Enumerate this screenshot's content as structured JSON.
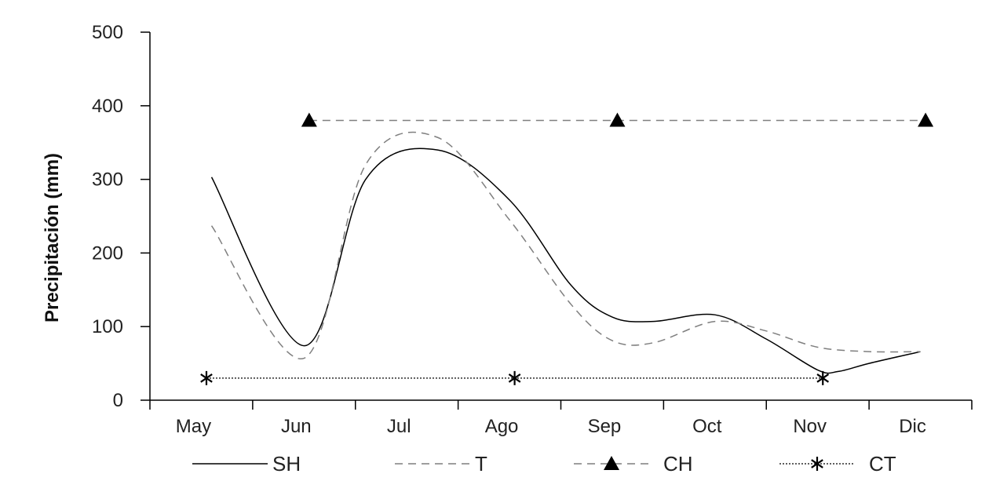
{
  "chart_data": {
    "type": "line",
    "title": "",
    "xlabel": "",
    "ylabel": "Precipitación (mm)",
    "categories": [
      "May",
      "Jun",
      "Jul",
      "Ago",
      "Sep",
      "Oct",
      "Nov",
      "Dic"
    ],
    "ylim": [
      0,
      500
    ],
    "yticks": [
      0,
      100,
      200,
      300,
      400,
      500
    ],
    "grid": false,
    "legend_position": "bottom",
    "series": [
      {
        "name": "SH",
        "style": "solid",
        "marker": "none",
        "color": "#000000",
        "points": [
          [
            0.1,
            303
          ],
          [
            1.0,
            74
          ],
          [
            1.6,
            300
          ],
          [
            2.3,
            340
          ],
          [
            3.0,
            272
          ],
          [
            3.6,
            156
          ],
          [
            4.0,
            113
          ],
          [
            4.4,
            107
          ],
          [
            5.0,
            116
          ],
          [
            5.5,
            83
          ],
          [
            6.0,
            41
          ],
          [
            6.2,
            39
          ],
          [
            6.5,
            50
          ],
          [
            7.0,
            66
          ]
        ]
      },
      {
        "name": "T",
        "style": "dashed",
        "marker": "none",
        "color": "#7f7f7f",
        "points": [
          [
            0.1,
            237
          ],
          [
            1.0,
            57
          ],
          [
            1.6,
            320
          ],
          [
            2.3,
            357
          ],
          [
            3.0,
            245
          ],
          [
            3.6,
            130
          ],
          [
            4.0,
            81
          ],
          [
            4.4,
            78
          ],
          [
            5.0,
            107
          ],
          [
            5.5,
            94
          ],
          [
            6.0,
            72
          ],
          [
            6.5,
            66
          ],
          [
            7.0,
            66
          ]
        ]
      },
      {
        "name": "CH",
        "style": "dashed",
        "marker": "triangle",
        "color": "#000000",
        "points": [
          [
            1.05,
            380
          ],
          [
            4.05,
            380
          ],
          [
            7.05,
            380
          ]
        ]
      },
      {
        "name": "CT",
        "style": "dotted",
        "marker": "asterisk",
        "color": "#000000",
        "points": [
          [
            0.05,
            30
          ],
          [
            3.05,
            30
          ],
          [
            6.05,
            30
          ]
        ]
      }
    ]
  }
}
